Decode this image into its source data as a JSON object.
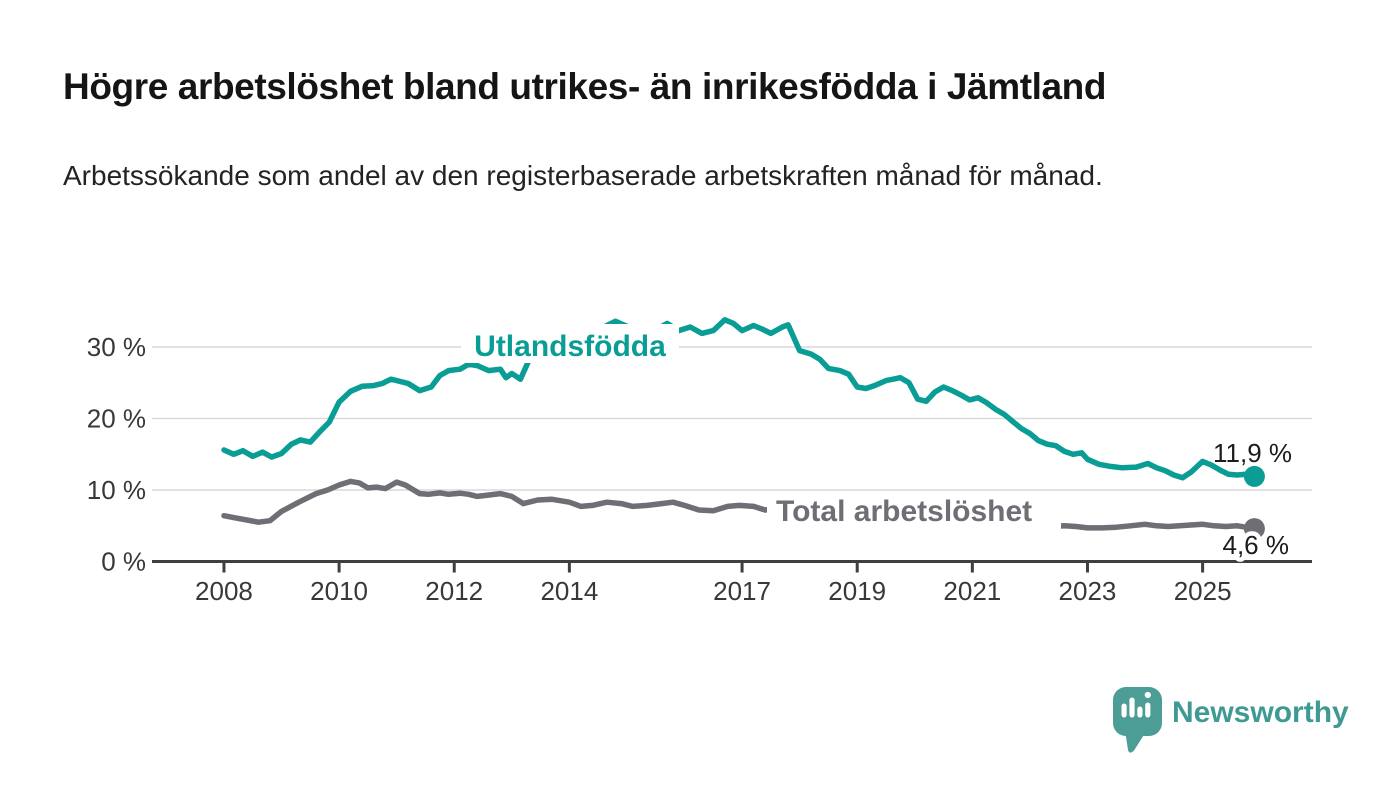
{
  "header": {
    "title": "Högre arbetslöshet bland utrikes- än inrikesfödda i Jämtland",
    "subtitle": "Arbetssökande som andel av den registerbaserade arbetskraften månad för månad."
  },
  "footer": {
    "brand": "Newsworthy"
  },
  "colors": {
    "line_teal": "#0a9d95",
    "line_gray": "#6e6e74",
    "grid": "#d9d9d9",
    "axis": "#3f3f3f",
    "tick_text": "#383838",
    "value_label": "#1c1c1c",
    "logo_bubble": "#4b9d96",
    "logo_text": "#3f9a94"
  },
  "chart_data": {
    "type": "line",
    "title": "Högre arbetslöshet bland utrikes- än inrikesfödda i Jämtland",
    "subtitle": "Arbetssökande som andel av den registerbaserade arbetskraften månad för månad.",
    "unit": "%",
    "grid": true,
    "legend_position": "inline-labels",
    "xlim": [
      2006.75,
      2026.9
    ],
    "ylim": [
      0,
      34.5
    ],
    "x_axis": {
      "ticks": [
        2008,
        2010,
        2012,
        2014,
        2017,
        2019,
        2021,
        2023,
        2025
      ],
      "labels": [
        "2008",
        "2010",
        "2012",
        "2014",
        "2017",
        "2019",
        "2021",
        "2023",
        "2025"
      ]
    },
    "y_axis": {
      "ticks": [
        0,
        10,
        20,
        30
      ],
      "labels": [
        "0 %",
        "10 %",
        "20 %",
        "30 %"
      ]
    },
    "series": [
      {
        "id": "utlandsfodda",
        "name": "Utlandsfödda",
        "color": "#0a9d95",
        "end_label": "11,9 %",
        "end_value": 11.9,
        "x": [
          2008.0,
          2008.17,
          2008.33,
          2008.5,
          2008.67,
          2008.83,
          2009.0,
          2009.17,
          2009.33,
          2009.5,
          2009.67,
          2009.83,
          2010.0,
          2010.2,
          2010.4,
          2010.6,
          2010.75,
          2010.9,
          2011.0,
          2011.2,
          2011.4,
          2011.6,
          2011.75,
          2011.9,
          2012.1,
          2012.25,
          2012.4,
          2012.6,
          2012.8,
          2012.9,
          2013.0,
          2013.15,
          2013.3,
          2013.6,
          2013.9,
          2014.1,
          2014.35,
          2014.6,
          2014.8,
          2015.0,
          2015.2,
          2015.45,
          2015.7,
          2015.9,
          2016.1,
          2016.3,
          2016.5,
          2016.7,
          2016.85,
          2017.0,
          2017.2,
          2017.35,
          2017.5,
          2017.7,
          2017.8,
          2018.0,
          2018.2,
          2018.35,
          2018.5,
          2018.7,
          2018.85,
          2019.0,
          2019.15,
          2019.3,
          2019.5,
          2019.75,
          2019.9,
          2020.05,
          2020.2,
          2020.35,
          2020.5,
          2020.65,
          2020.8,
          2020.95,
          2021.1,
          2021.25,
          2021.4,
          2021.55,
          2021.7,
          2021.85,
          2022.0,
          2022.15,
          2022.3,
          2022.45,
          2022.6,
          2022.75,
          2022.9,
          2023.0,
          2023.2,
          2023.4,
          2023.6,
          2023.85,
          2024.05,
          2024.2,
          2024.35,
          2024.5,
          2024.65,
          2024.8,
          2025.0,
          2025.15,
          2025.3,
          2025.45,
          2025.6,
          2025.75,
          2025.9
        ],
        "y": [
          15.6,
          15.0,
          15.5,
          14.7,
          15.3,
          14.6,
          15.1,
          16.4,
          17.0,
          16.7,
          18.2,
          19.5,
          22.3,
          23.8,
          24.5,
          24.6,
          24.9,
          25.5,
          25.3,
          24.9,
          23.9,
          24.4,
          26.0,
          26.7,
          26.9,
          27.6,
          27.4,
          26.7,
          26.9,
          25.7,
          26.3,
          25.5,
          28.2,
          29.2,
          30.1,
          30.8,
          31.3,
          32.8,
          33.6,
          32.9,
          32.4,
          32.2,
          33.3,
          32.3,
          32.8,
          31.9,
          32.3,
          33.8,
          33.3,
          32.3,
          33.0,
          32.5,
          31.9,
          32.8,
          33.1,
          29.5,
          29.0,
          28.3,
          27.0,
          26.7,
          26.2,
          24.4,
          24.2,
          24.6,
          25.3,
          25.7,
          25.0,
          22.7,
          22.4,
          23.7,
          24.4,
          23.9,
          23.3,
          22.6,
          22.9,
          22.2,
          21.3,
          20.6,
          19.6,
          18.6,
          17.9,
          16.9,
          16.4,
          16.2,
          15.4,
          15.0,
          15.2,
          14.3,
          13.6,
          13.3,
          13.1,
          13.2,
          13.7,
          13.1,
          12.7,
          12.1,
          11.7,
          12.5,
          14.0,
          13.5,
          12.8,
          12.2,
          12.1,
          12.2,
          11.9
        ]
      },
      {
        "id": "total",
        "name": "Total arbetslöshet",
        "color": "#6e6e74",
        "end_label": "4,6 %",
        "end_value": 4.6,
        "x": [
          2008.0,
          2008.2,
          2008.4,
          2008.6,
          2008.8,
          2009.0,
          2009.3,
          2009.6,
          2009.8,
          2010.0,
          2010.2,
          2010.35,
          2010.5,
          2010.65,
          2010.8,
          2011.0,
          2011.15,
          2011.4,
          2011.55,
          2011.75,
          2011.9,
          2012.1,
          2012.25,
          2012.4,
          2012.55,
          2012.8,
          2013.0,
          2013.2,
          2013.45,
          2013.7,
          2014.0,
          2014.2,
          2014.4,
          2014.65,
          2014.9,
          2015.1,
          2015.35,
          2015.6,
          2015.8,
          2016.0,
          2016.25,
          2016.5,
          2016.75,
          2016.95,
          2017.2,
          2017.4,
          2017.6,
          2017.8,
          2018.0,
          2018.5,
          2019.0,
          2019.5,
          2020.0,
          2020.4,
          2020.8,
          2021.0,
          2021.5,
          2022.0,
          2022.2,
          2022.4,
          2022.6,
          2022.8,
          2023.0,
          2023.25,
          2023.5,
          2023.75,
          2024.0,
          2024.2,
          2024.4,
          2024.6,
          2024.8,
          2025.0,
          2025.2,
          2025.4,
          2025.6,
          2025.75,
          2025.9
        ],
        "y": [
          6.4,
          6.1,
          5.8,
          5.5,
          5.7,
          7.0,
          8.3,
          9.5,
          10.0,
          10.7,
          11.2,
          11.0,
          10.3,
          10.4,
          10.2,
          11.1,
          10.7,
          9.5,
          9.4,
          9.6,
          9.4,
          9.55,
          9.4,
          9.1,
          9.25,
          9.5,
          9.1,
          8.1,
          8.6,
          8.7,
          8.3,
          7.7,
          7.85,
          8.3,
          8.1,
          7.7,
          7.85,
          8.1,
          8.3,
          7.85,
          7.2,
          7.1,
          7.7,
          7.85,
          7.7,
          7.2,
          7.4,
          7.6,
          7.3,
          7.0,
          6.6,
          6.4,
          6.3,
          7.4,
          7.0,
          6.7,
          6.0,
          5.3,
          5.1,
          4.9,
          5.0,
          4.9,
          4.7,
          4.7,
          4.8,
          5.0,
          5.2,
          5.0,
          4.9,
          5.0,
          5.1,
          5.2,
          5.0,
          4.9,
          5.0,
          4.8,
          4.6
        ]
      }
    ]
  }
}
